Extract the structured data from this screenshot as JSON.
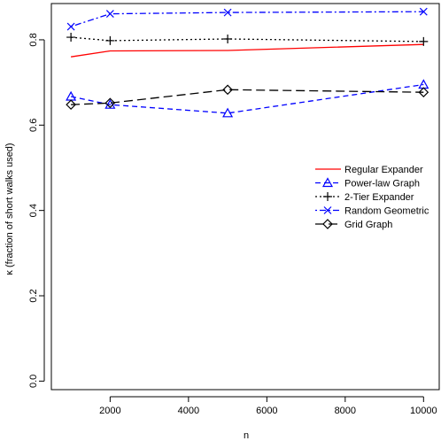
{
  "chart_data": {
    "type": "line",
    "title": "",
    "xlabel": "n",
    "ylabel": "κ (fraction of short walks used)",
    "x": [
      1000,
      2000,
      5000,
      10000
    ],
    "xlim": [
      500,
      10400
    ],
    "ylim": [
      -0.02,
      0.885
    ],
    "xticks": [
      2000,
      4000,
      6000,
      8000,
      10000
    ],
    "xtick_labels": [
      "2000",
      "4000",
      "6000",
      "8000",
      "10000"
    ],
    "yticks": [
      0.0,
      0.2,
      0.4,
      0.6,
      0.8
    ],
    "ytick_labels": [
      "0.0",
      "0.2",
      "0.4",
      "0.6",
      "0.8"
    ],
    "grid": false,
    "legend_position": "right",
    "series": [
      {
        "name": "Regular Expander",
        "values": [
          0.76,
          0.774,
          0.775,
          0.789
        ],
        "color": "#ff0000",
        "dash": "solid",
        "marker": "none"
      },
      {
        "name": "Power-law Graph",
        "values": [
          0.667,
          0.648,
          0.628,
          0.695
        ],
        "color": "#0000ff",
        "dash": "dashed",
        "marker": "triangle"
      },
      {
        "name": "2-Tier Expander",
        "values": [
          0.806,
          0.798,
          0.802,
          0.796
        ],
        "color": "#000000",
        "dash": "dotted",
        "marker": "plus"
      },
      {
        "name": "Random Geometric",
        "values": [
          0.831,
          0.861,
          0.864,
          0.866
        ],
        "color": "#0000ff",
        "dash": "dotdash",
        "marker": "cross"
      },
      {
        "name": "Grid Graph",
        "values": [
          0.648,
          0.652,
          0.683,
          0.677
        ],
        "color": "#000000",
        "dash": "longdash",
        "marker": "diamond"
      }
    ]
  }
}
